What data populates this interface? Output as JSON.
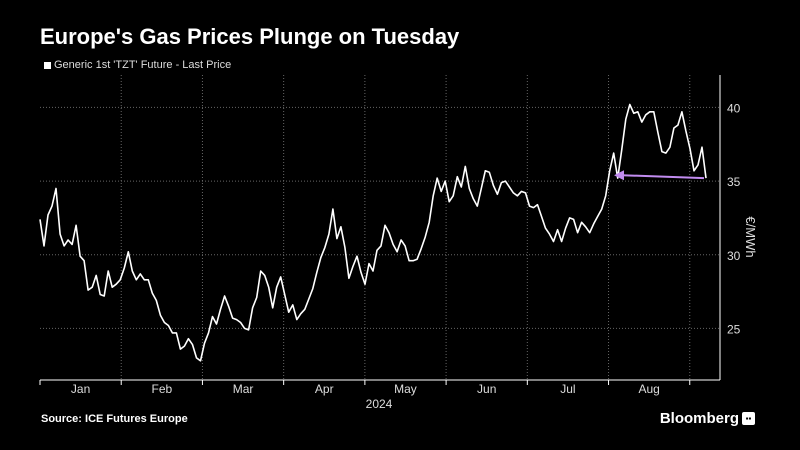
{
  "header": {
    "title": "Europe's Gas Prices Plunge on Tuesday"
  },
  "legend": {
    "label": "Generic 1st 'TZT' Future - Last Price"
  },
  "footer": {
    "source": "Source: ICE Futures Europe",
    "brand": "Bloomberg"
  },
  "colors": {
    "background": "#000000",
    "line": "#ffffff",
    "arrow": "#c28cf0",
    "grid": "#666666"
  },
  "chart_data": {
    "type": "line",
    "title": "Europe's Gas Prices Plunge on Tuesday",
    "ylabel": "€/MWh",
    "year_label": "2024",
    "month_labels": [
      "Jan",
      "Feb",
      "Mar",
      "Apr",
      "May",
      "Jun",
      "Jul",
      "Aug"
    ],
    "yticks": [
      25,
      30,
      35,
      40
    ],
    "ylim": [
      21.5,
      42.2
    ],
    "grid": true,
    "series": [
      {
        "name": "Generic 1st 'TZT' Future - Last Price",
        "values": [
          32.4,
          30.6,
          32.7,
          33.3,
          34.5,
          31.4,
          30.6,
          31.0,
          30.7,
          32.0,
          29.9,
          29.6,
          27.6,
          27.8,
          28.6,
          27.3,
          27.2,
          28.9,
          27.8,
          28.0,
          28.3,
          29.1,
          30.2,
          28.9,
          28.3,
          28.7,
          28.3,
          28.3,
          27.4,
          26.9,
          25.9,
          25.4,
          25.2,
          24.7,
          24.7,
          23.6,
          23.8,
          24.3,
          23.9,
          23.0,
          22.8,
          24.0,
          24.7,
          25.8,
          25.3,
          26.3,
          27.2,
          26.5,
          25.7,
          25.6,
          25.4,
          25.0,
          24.9,
          26.4,
          27.1,
          28.9,
          28.6,
          27.8,
          26.4,
          27.8,
          28.5,
          27.3,
          26.1,
          26.6,
          25.6,
          26.0,
          26.3,
          27.0,
          27.7,
          28.8,
          29.8,
          30.5,
          31.4,
          33.1,
          31.1,
          31.9,
          30.5,
          28.4,
          29.2,
          29.9,
          28.8,
          28.0,
          29.4,
          28.9,
          30.3,
          30.6,
          32.0,
          31.5,
          30.7,
          30.2,
          31.0,
          30.6,
          29.6,
          29.6,
          29.7,
          30.4,
          31.2,
          32.2,
          34.0,
          35.2,
          34.3,
          35.0,
          33.6,
          34.0,
          35.3,
          34.6,
          36.0,
          34.5,
          33.8,
          33.3,
          34.5,
          35.7,
          35.6,
          34.7,
          34.1,
          34.9,
          35.0,
          34.6,
          34.2,
          34.0,
          34.3,
          34.2,
          33.3,
          33.2,
          33.4,
          32.6,
          31.8,
          31.4,
          30.9,
          31.7,
          30.9,
          31.8,
          32.5,
          32.4,
          31.5,
          32.2,
          31.9,
          31.5,
          32.1,
          32.6,
          33.1,
          34.0,
          35.7,
          36.9,
          35.2,
          37.1,
          39.2,
          40.2,
          39.6,
          39.7,
          39.0,
          39.5,
          39.7,
          39.7,
          38.3,
          37.0,
          36.9,
          37.3,
          38.6,
          38.8,
          39.7,
          38.4,
          37.2,
          35.7,
          36.1,
          37.3,
          35.2
        ]
      }
    ],
    "annotation": {
      "type": "arrow",
      "from_value": 35.2,
      "to_value": 35.4,
      "color": "#c28cf0"
    }
  }
}
